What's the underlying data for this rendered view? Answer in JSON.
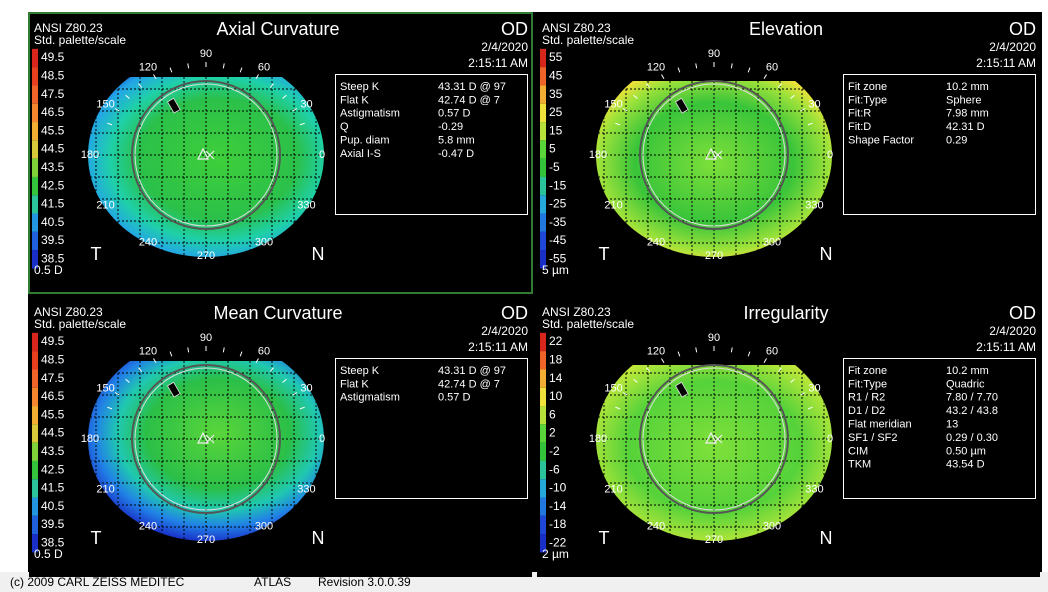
{
  "panels": [
    {
      "standard": "ANSI Z80.23",
      "palette": "Std. palette/scale",
      "title": "Axial Curvature",
      "eye": "OD",
      "date": "2/4/2020",
      "time": "2:15:11 AM",
      "scale": [
        "49.5",
        "48.5",
        "47.5",
        "46.5",
        "45.5",
        "44.5",
        "43.5",
        "42.5",
        "41.5",
        "40.5",
        "39.5",
        "38.5"
      ],
      "step": "0.5 D",
      "angles": [
        "90",
        "120",
        "60",
        "150",
        "30",
        "180",
        "0",
        "210",
        "330",
        "240",
        "300",
        "270"
      ],
      "temporal": "T",
      "nasal": "N",
      "info": [
        [
          "Steep K",
          "43.31 D @ 97"
        ],
        [
          "Flat K",
          "42.74 D @ 7"
        ],
        [
          "Astigmatism",
          "0.57 D"
        ],
        [
          "Q",
          "-0.29"
        ],
        [
          "Pup. diam",
          "5.8 mm"
        ],
        [
          "Axial I-S",
          "-0.47 D"
        ]
      ]
    },
    {
      "standard": "ANSI Z80.23",
      "palette": "Std. palette/scale",
      "title": "Elevation",
      "eye": "OD",
      "date": "2/4/2020",
      "time": "2:15:11 AM",
      "scale": [
        "55",
        "45",
        "35",
        "25",
        "15",
        "5",
        "-5",
        "-15",
        "-25",
        "-35",
        "-45",
        "-55"
      ],
      "step": "5 µm",
      "angles": [
        "90",
        "120",
        "60",
        "150",
        "30",
        "180",
        "0",
        "210",
        "330",
        "240",
        "300",
        "270"
      ],
      "temporal": "T",
      "nasal": "N",
      "info": [
        [
          "Fit zone",
          "10.2 mm"
        ],
        [
          "Fit:Type",
          "Sphere"
        ],
        [
          "Fit:R",
          "7.98 mm"
        ],
        [
          "Fit:D",
          "42.31 D"
        ],
        [
          "Shape Factor",
          "0.29"
        ]
      ]
    },
    {
      "standard": "ANSI Z80.23",
      "palette": "Std. palette/scale",
      "title": "Mean Curvature",
      "eye": "OD",
      "date": "2/4/2020",
      "time": "2:15:11 AM",
      "scale": [
        "49.5",
        "48.5",
        "47.5",
        "46.5",
        "45.5",
        "44.5",
        "43.5",
        "42.5",
        "41.5",
        "40.5",
        "39.5",
        "38.5"
      ],
      "step": "0.5 D",
      "angles": [
        "90",
        "120",
        "60",
        "150",
        "30",
        "180",
        "0",
        "210",
        "330",
        "240",
        "300",
        "270"
      ],
      "temporal": "T",
      "nasal": "N",
      "info": [
        [
          "Steep K",
          "43.31 D @ 97"
        ],
        [
          "Flat K",
          "42.74 D @ 7"
        ],
        [
          "Astigmatism",
          "0.57 D"
        ]
      ]
    },
    {
      "standard": "ANSI Z80.23",
      "palette": "Std. palette/scale",
      "title": "Irregularity",
      "eye": "OD",
      "date": "2/4/2020",
      "time": "2:15:11 AM",
      "scale": [
        "22",
        "18",
        "14",
        "10",
        "6",
        "2",
        "-2",
        "-6",
        "-10",
        "-14",
        "-18",
        "-22"
      ],
      "step": "2 µm",
      "angles": [
        "90",
        "120",
        "60",
        "150",
        "30",
        "180",
        "0",
        "210",
        "330",
        "240",
        "300",
        "270"
      ],
      "temporal": "T",
      "nasal": "N",
      "info": [
        [
          "Fit zone",
          "10.2 mm"
        ],
        [
          "Fit:Type",
          "Quadric"
        ],
        [
          "R1 / R2",
          "7.80 / 7.70"
        ],
        [
          "D1 / D2",
          "43.2 / 43.8"
        ],
        [
          "Flat meridian",
          "13"
        ],
        [
          "SF1 / SF2",
          "0.29 / 0.30"
        ],
        [
          "CIM",
          "0.50 µm"
        ],
        [
          "TKM",
          "43.54 D"
        ]
      ]
    }
  ],
  "footer": {
    "copyright": "(c) 2009 CARL ZEISS MEDITEC",
    "product": "ATLAS",
    "revision": "Revision  3.0.0.39"
  }
}
